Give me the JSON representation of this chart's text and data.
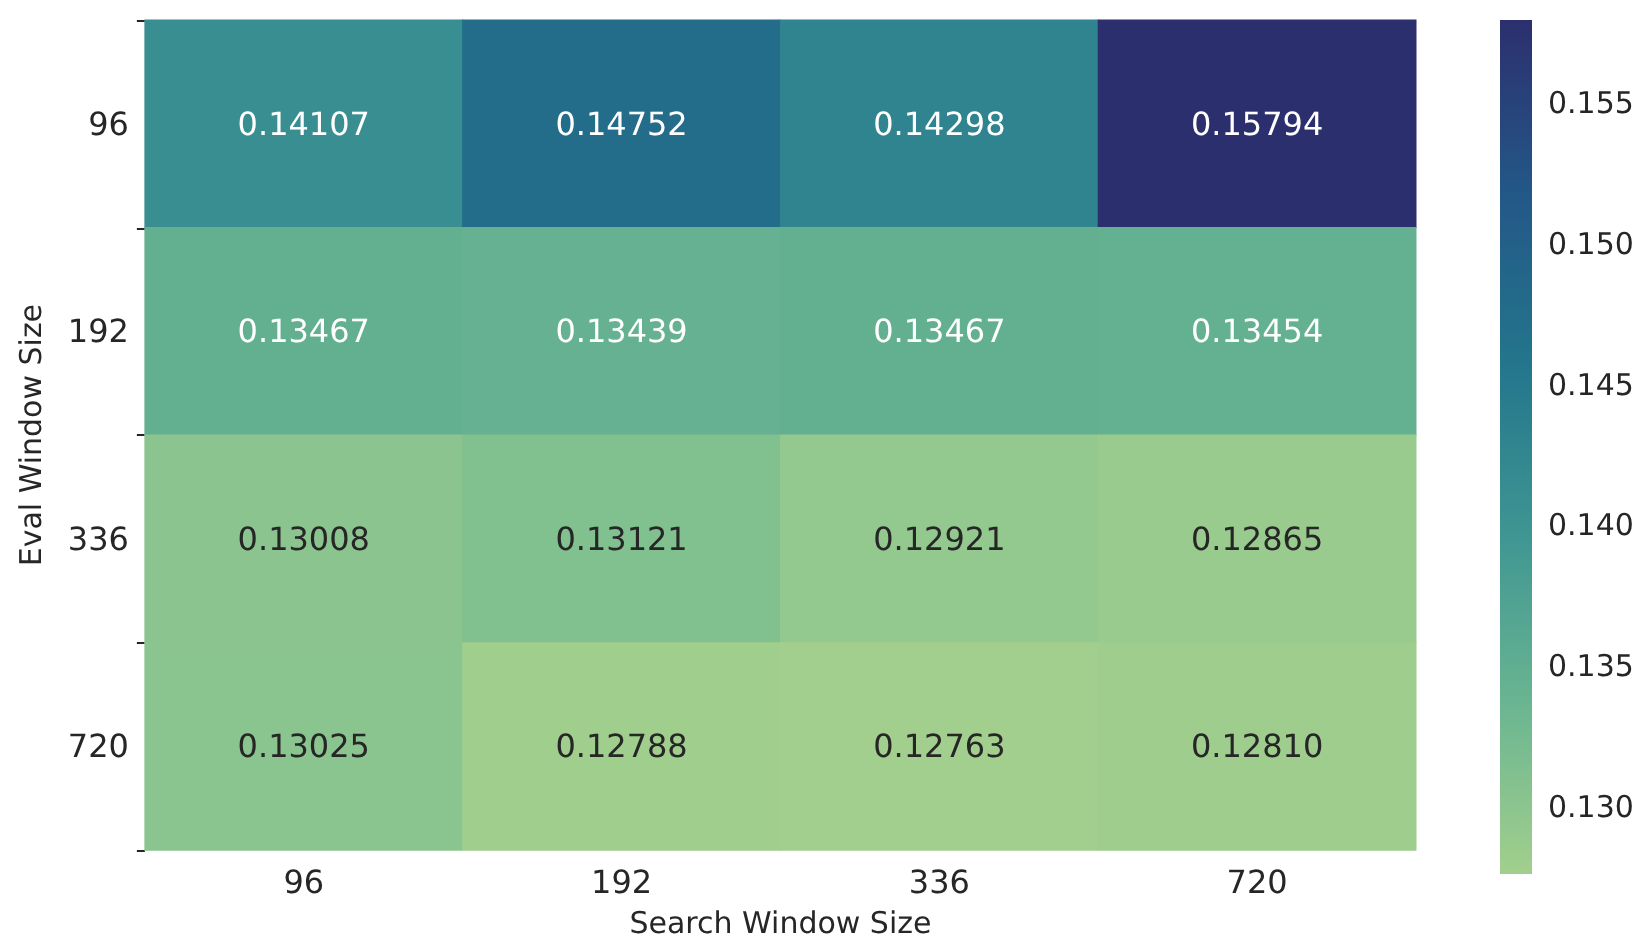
{
  "chart_data": {
    "type": "heatmap",
    "xlabel": "Search Window Size",
    "ylabel": "Eval Window Size",
    "categories": [
      "96",
      "192",
      "336",
      "720"
    ],
    "y_categories": [
      "96",
      "192",
      "336",
      "720"
    ],
    "cells": [
      [
        0.14107,
        0.14752,
        0.14298,
        0.15794
      ],
      [
        0.13467,
        0.13439,
        0.13467,
        0.13454
      ],
      [
        0.13008,
        0.13121,
        0.12921,
        0.12865
      ],
      [
        0.13025,
        0.12788,
        0.12763,
        0.1281
      ]
    ],
    "data_labels": true,
    "cell_labels": [
      [
        "0.14107",
        "0.14752",
        "0.14298",
        "0.15794"
      ],
      [
        "0.13467",
        "0.13439",
        "0.13467",
        "0.13454"
      ],
      [
        "0.13008",
        "0.13121",
        "0.12921",
        "0.12865"
      ],
      [
        "0.13025",
        "0.12788",
        "0.12763",
        "0.12810"
      ]
    ],
    "clim": [
      0.12763,
      0.15794
    ],
    "cticks": [
      {
        "value": 0.13,
        "label": "0.130"
      },
      0.135,
      {
        "value": 0.14,
        "label": "0.140"
      },
      0.145,
      {
        "value": 0.15,
        "label": "0.150"
      },
      0.155
    ]
  }
}
